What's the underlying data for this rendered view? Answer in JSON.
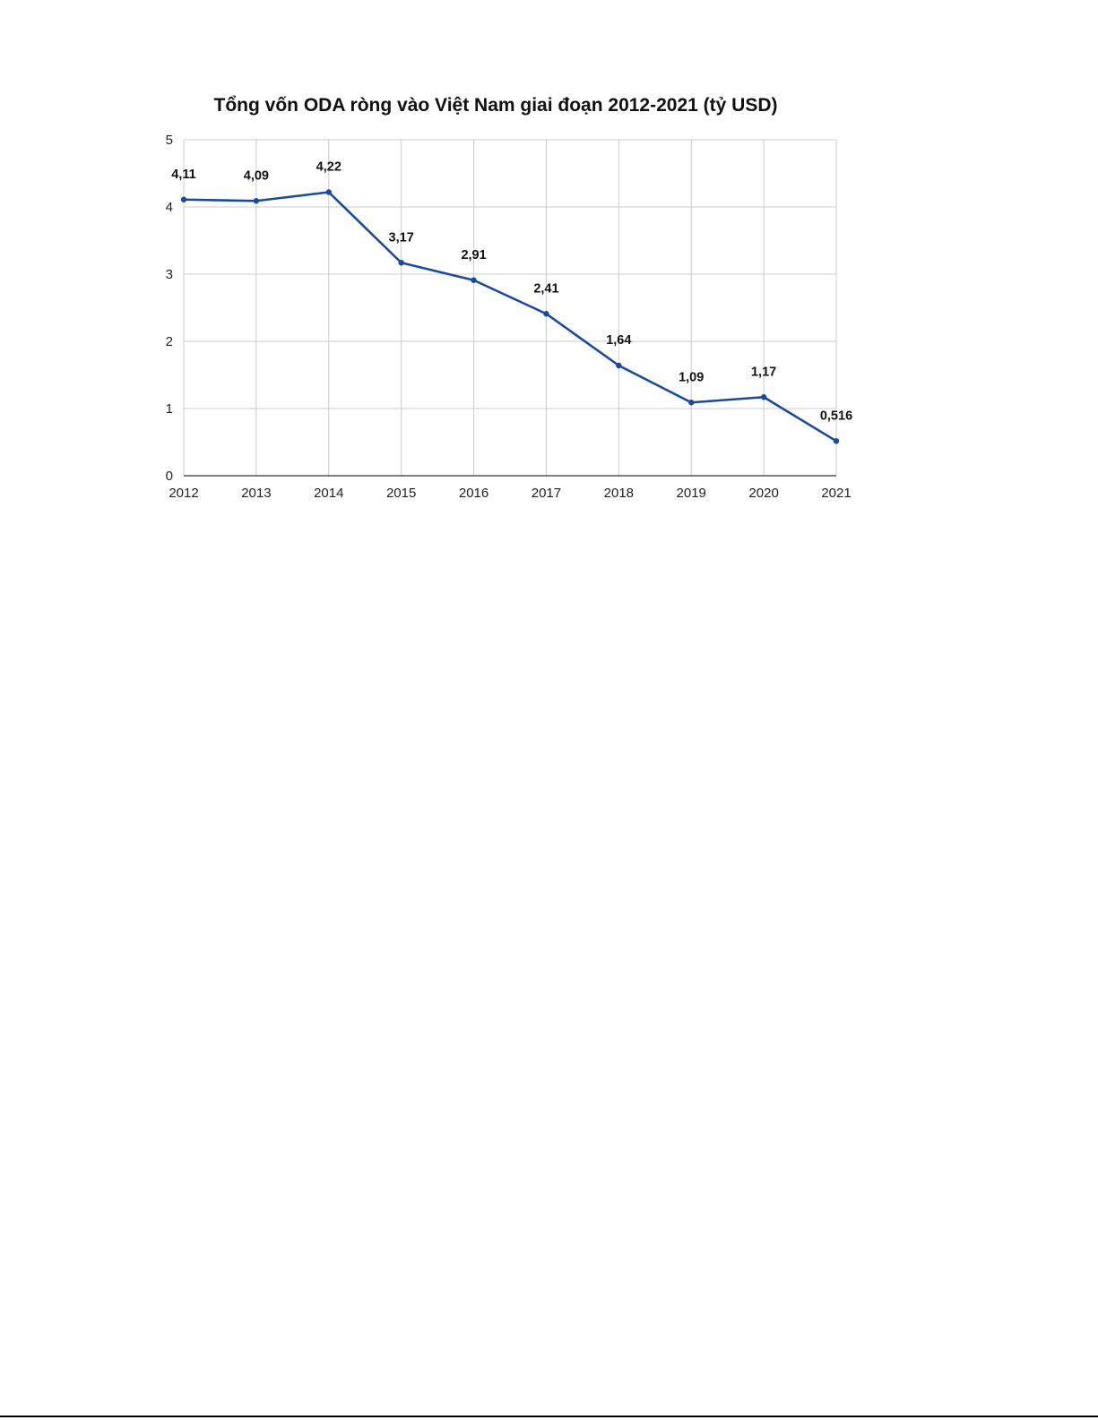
{
  "chart_data": {
    "type": "line",
    "title": "Tổng vốn ODA ròng vào Việt Nam giai đoạn 2012-2021 (tỷ USD)",
    "xlabel": "",
    "ylabel": "",
    "categories": [
      "2012",
      "2013",
      "2014",
      "2015",
      "2016",
      "2017",
      "2018",
      "2019",
      "2020",
      "2021"
    ],
    "series": [
      {
        "values": [
          4.11,
          4.09,
          4.22,
          3.17,
          2.91,
          2.41,
          1.64,
          1.09,
          1.17,
          0.516
        ],
        "labels": [
          "4,11",
          "4,09",
          "4,22",
          "3,17",
          "2,91",
          "2,41",
          "1,64",
          "1,09",
          "1,17",
          "0,516"
        ]
      }
    ],
    "ylim": [
      0,
      5
    ],
    "yticks": [
      "0",
      "1",
      "2",
      "3",
      "4",
      "5"
    ],
    "grid": true,
    "legend": "none",
    "colors": {
      "series": "#1a4a9c"
    }
  }
}
